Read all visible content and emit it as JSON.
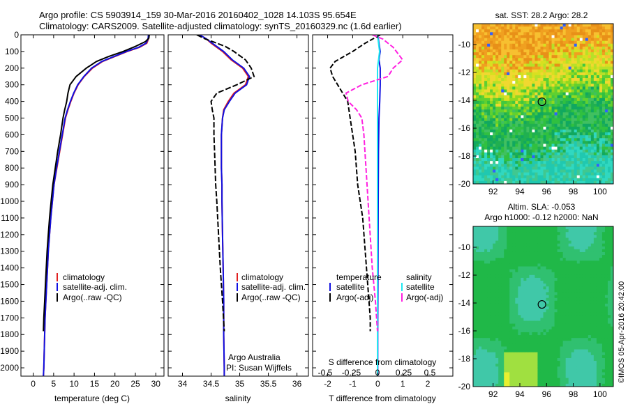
{
  "header": {
    "line1": "Argo profile: CS 5903914_159 30-Mar-2016 20160402_1028 14.103S 95.654E",
    "line2": "Climatology: CARS2009. Satellite-adjusted climatology: synTS_20160329.nc (1.6d earlier)"
  },
  "colors": {
    "climatology": "#e02020",
    "satellite": "#1010e0",
    "argo": "#000000",
    "salinity_diff": "#ff20e0",
    "sat_salinity_diff": "#20e8f0"
  },
  "panels": {
    "temperature": {
      "xlabel": "temperature (deg C)",
      "legend": [
        "climatology",
        "satellite-adj. clim.",
        "Argo(..raw -QC)"
      ]
    },
    "salinity": {
      "xlabel": "salinity",
      "legend": [
        "climatology",
        "satellite-adj. clim.",
        "Argo(..raw -QC)"
      ],
      "note1": "Argo Australia",
      "note2": "PI: Susan Wijffels"
    },
    "difference": {
      "xlabel_bottom": "T difference from climatology",
      "xlabel_top": "S difference from climatology",
      "legend_temperature_title": "temperature",
      "legend_salinity_title": "salinity",
      "legend_t": [
        "satellite",
        "Argo(-adj)"
      ],
      "legend_s": [
        "satellite",
        "Argo(-adj)"
      ]
    },
    "sst_map": {
      "title": "sat. SST: 28.2  Argo: 28.2"
    },
    "sla_map": {
      "title1": "Altim. SLA: -0.053",
      "title2": "Argo h1000: -0.12  h2000: NaN"
    },
    "credit": "©IMOS 05-Apr-2016 20:42:00"
  },
  "chart_data": [
    {
      "type": "line",
      "title": "",
      "xlabel": "temperature (deg C)",
      "ylabel": "",
      "xlim": [
        -3,
        32
      ],
      "ylim": [
        2050,
        0
      ],
      "xticks": [
        0,
        5,
        10,
        15,
        20,
        25,
        30
      ],
      "yticks": [
        0,
        100,
        200,
        300,
        400,
        500,
        600,
        700,
        800,
        900,
        1000,
        1100,
        1200,
        1300,
        1400,
        1500,
        1600,
        1700,
        1800,
        1900,
        2000
      ],
      "series": [
        {
          "name": "climatology",
          "values": [
            [
              28.3,
              0
            ],
            [
              28.2,
              25
            ],
            [
              27.8,
              50
            ],
            [
              26,
              75
            ],
            [
              23,
              100
            ],
            [
              20,
              130
            ],
            [
              17,
              160
            ],
            [
              14.5,
              200
            ],
            [
              12.5,
              250
            ],
            [
              11,
              300
            ],
            [
              10,
              350
            ],
            [
              9.2,
              400
            ],
            [
              8.5,
              450
            ],
            [
              7.9,
              500
            ],
            [
              7.2,
              600
            ],
            [
              6.5,
              700
            ],
            [
              5.8,
              800
            ],
            [
              5.1,
              900
            ],
            [
              4.7,
              1000
            ],
            [
              4.3,
              1100
            ],
            [
              4.0,
              1200
            ],
            [
              3.7,
              1300
            ],
            [
              3.5,
              1400
            ],
            [
              3.3,
              1500
            ],
            [
              3.1,
              1600
            ],
            [
              2.9,
              1700
            ],
            [
              2.8,
              1800
            ],
            [
              2.7,
              1900
            ],
            [
              2.6,
              2000
            ],
            [
              2.5,
              2050
            ]
          ]
        },
        {
          "name": "satellite-adj. clim.",
          "values": [
            [
              28.2,
              0
            ],
            [
              28.1,
              25
            ],
            [
              27.6,
              50
            ],
            [
              25.8,
              75
            ],
            [
              22.8,
              100
            ],
            [
              19.8,
              130
            ],
            [
              16.8,
              160
            ],
            [
              14.3,
              200
            ],
            [
              12.4,
              250
            ],
            [
              10.9,
              300
            ],
            [
              9.9,
              350
            ],
            [
              9.1,
              400
            ],
            [
              8.4,
              450
            ],
            [
              7.8,
              500
            ],
            [
              7.1,
              600
            ],
            [
              6.4,
              700
            ],
            [
              5.7,
              800
            ],
            [
              5.1,
              900
            ],
            [
              4.7,
              1000
            ],
            [
              4.3,
              1100
            ],
            [
              4.0,
              1200
            ],
            [
              3.7,
              1300
            ],
            [
              3.5,
              1400
            ],
            [
              3.3,
              1500
            ],
            [
              3.1,
              1600
            ],
            [
              2.9,
              1700
            ],
            [
              2.8,
              1800
            ],
            [
              2.7,
              1900
            ],
            [
              2.6,
              2000
            ],
            [
              2.5,
              2050
            ]
          ]
        },
        {
          "name": "Argo(..raw -QC)",
          "values": [
            [
              28.4,
              0
            ],
            [
              28.3,
              20
            ],
            [
              27.5,
              40
            ],
            [
              25,
              70
            ],
            [
              22,
              100
            ],
            [
              18.5,
              130
            ],
            [
              15.5,
              160
            ],
            [
              13,
              200
            ],
            [
              10.5,
              250
            ],
            [
              9,
              300
            ],
            [
              8.5,
              350
            ],
            [
              8.2,
              400
            ],
            [
              7.7,
              450
            ],
            [
              7.3,
              500
            ],
            [
              6.7,
              600
            ],
            [
              6,
              700
            ],
            [
              5.4,
              800
            ],
            [
              4.8,
              900
            ],
            [
              4.4,
              1000
            ],
            [
              4.0,
              1100
            ],
            [
              3.7,
              1200
            ],
            [
              3.4,
              1300
            ],
            [
              3.2,
              1400
            ],
            [
              3.0,
              1500
            ],
            [
              2.8,
              1600
            ],
            [
              2.6,
              1700
            ],
            [
              2.5,
              1780
            ]
          ]
        }
      ]
    },
    {
      "type": "line",
      "title": "",
      "xlabel": "salinity",
      "ylabel": "",
      "xlim": [
        33.75,
        36.2
      ],
      "ylim": [
        2050,
        0
      ],
      "xticks": [
        34,
        34.5,
        35,
        35.5,
        36
      ],
      "series": [
        {
          "name": "climatology",
          "values": [
            [
              34.3,
              0
            ],
            [
              34.42,
              25
            ],
            [
              34.5,
              50
            ],
            [
              34.6,
              75
            ],
            [
              34.7,
              100
            ],
            [
              34.85,
              150
            ],
            [
              35.05,
              200
            ],
            [
              35.15,
              250
            ],
            [
              35.1,
              300
            ],
            [
              34.9,
              350
            ],
            [
              34.8,
              400
            ],
            [
              34.72,
              450
            ],
            [
              34.7,
              500
            ],
            [
              34.68,
              600
            ],
            [
              34.68,
              700
            ],
            [
              34.68,
              800
            ],
            [
              34.69,
              900
            ],
            [
              34.69,
              1000
            ],
            [
              34.7,
              1200
            ],
            [
              34.71,
              1400
            ],
            [
              34.72,
              1600
            ],
            [
              34.72,
              1800
            ],
            [
              34.73,
              2000
            ],
            [
              34.73,
              2050
            ]
          ]
        },
        {
          "name": "satellite-adj. clim.",
          "values": [
            [
              34.3,
              0
            ],
            [
              34.42,
              25
            ],
            [
              34.52,
              50
            ],
            [
              34.62,
              75
            ],
            [
              34.72,
              100
            ],
            [
              34.87,
              150
            ],
            [
              35.07,
              200
            ],
            [
              35.17,
              250
            ],
            [
              35.12,
              300
            ],
            [
              34.92,
              350
            ],
            [
              34.82,
              400
            ],
            [
              34.73,
              450
            ],
            [
              34.7,
              500
            ],
            [
              34.68,
              600
            ],
            [
              34.68,
              700
            ],
            [
              34.68,
              800
            ],
            [
              34.69,
              900
            ],
            [
              34.69,
              1000
            ],
            [
              34.7,
              1200
            ],
            [
              34.71,
              1400
            ],
            [
              34.72,
              1600
            ],
            [
              34.72,
              1800
            ],
            [
              34.73,
              2000
            ],
            [
              34.73,
              2050
            ]
          ]
        },
        {
          "name": "Argo(..raw -QC)",
          "values": [
            [
              34.25,
              0
            ],
            [
              34.4,
              25
            ],
            [
              34.6,
              50
            ],
            [
              34.75,
              70
            ],
            [
              34.9,
              100
            ],
            [
              35.1,
              150
            ],
            [
              35.2,
              200
            ],
            [
              35.25,
              250
            ],
            [
              34.95,
              300
            ],
            [
              34.6,
              350
            ],
            [
              34.5,
              400
            ],
            [
              34.52,
              450
            ],
            [
              34.55,
              500
            ],
            [
              34.55,
              600
            ],
            [
              34.56,
              700
            ],
            [
              34.57,
              800
            ],
            [
              34.58,
              900
            ],
            [
              34.6,
              1000
            ],
            [
              34.63,
              1200
            ],
            [
              34.66,
              1400
            ],
            [
              34.7,
              1600
            ],
            [
              34.73,
              1780
            ]
          ]
        }
      ]
    },
    {
      "type": "line",
      "title": "",
      "xlabel": "T difference from climatology",
      "xlabel_top": "S difference from climatology",
      "xlim": [
        -2.6,
        3.0
      ],
      "ylim": [
        2050,
        0
      ],
      "xticks": [
        -2,
        -1,
        0,
        1,
        2
      ],
      "xticks_top": [
        -0.5,
        -0.25,
        0,
        0.25,
        0.5
      ],
      "series": [
        {
          "name": "temperature satellite",
          "axis": "T",
          "values": [
            [
              0,
              0
            ],
            [
              0.05,
              50
            ],
            [
              0.1,
              100
            ],
            [
              0.05,
              150
            ],
            [
              0.1,
              200
            ],
            [
              0.1,
              300
            ],
            [
              0.08,
              400
            ],
            [
              0.05,
              500
            ],
            [
              0.03,
              700
            ],
            [
              0.02,
              1000
            ],
            [
              0.01,
              1400
            ],
            [
              0.0,
              1800
            ],
            [
              0.0,
              2050
            ]
          ]
        },
        {
          "name": "temperature Argo(-adj)",
          "axis": "T",
          "values": [
            [
              0.1,
              0
            ],
            [
              -0.5,
              50
            ],
            [
              -1.0,
              100
            ],
            [
              -1.7,
              160
            ],
            [
              -1.9,
              200
            ],
            [
              -1.8,
              250
            ],
            [
              -1.6,
              300
            ],
            [
              -1.4,
              350
            ],
            [
              -1.2,
              400
            ],
            [
              -1.1,
              500
            ],
            [
              -1.0,
              600
            ],
            [
              -0.9,
              700
            ],
            [
              -0.85,
              800
            ],
            [
              -0.8,
              900
            ],
            [
              -0.7,
              1000
            ],
            [
              -0.6,
              1100
            ],
            [
              -0.55,
              1200
            ],
            [
              -0.5,
              1300
            ],
            [
              -0.45,
              1400
            ],
            [
              -0.4,
              1500
            ],
            [
              -0.35,
              1600
            ],
            [
              -0.3,
              1700
            ],
            [
              -0.3,
              1780
            ]
          ]
        },
        {
          "name": "salinity satellite",
          "axis": "S",
          "values": [
            [
              0,
              0
            ],
            [
              0.01,
              50
            ],
            [
              0.02,
              100
            ],
            [
              0.0,
              200
            ],
            [
              0.0,
              400
            ],
            [
              0.0,
              800
            ],
            [
              0.0,
              1200
            ],
            [
              0.0,
              1600
            ],
            [
              0.0,
              2050
            ]
          ]
        },
        {
          "name": "salinity Argo(-adj)",
          "axis": "S",
          "values": [
            [
              -0.05,
              0
            ],
            [
              0.05,
              25
            ],
            [
              0.1,
              50
            ],
            [
              0.15,
              75
            ],
            [
              0.18,
              100
            ],
            [
              0.24,
              150
            ],
            [
              0.15,
              200
            ],
            [
              0.1,
              250
            ],
            [
              -0.15,
              300
            ],
            [
              -0.3,
              350
            ],
            [
              -0.28,
              400
            ],
            [
              -0.2,
              450
            ],
            [
              -0.15,
              500
            ],
            [
              -0.13,
              600
            ],
            [
              -0.12,
              700
            ],
            [
              -0.11,
              800
            ],
            [
              -0.1,
              900
            ],
            [
              -0.09,
              1000
            ],
            [
              -0.07,
              1200
            ],
            [
              -0.05,
              1400
            ],
            [
              -0.02,
              1600
            ],
            [
              0.0,
              1780
            ]
          ]
        }
      ]
    },
    {
      "type": "heatmap",
      "title": "sat. SST: 28.2  Argo: 28.2",
      "xlim": [
        90.5,
        101
      ],
      "ylim": [
        -20,
        -8.5
      ],
      "xticks": [
        92,
        94,
        96,
        98,
        100
      ],
      "yticks": [
        -10,
        -12,
        -14,
        -16,
        -18,
        -20
      ],
      "marker": [
        95.654,
        -14.103
      ]
    },
    {
      "type": "heatmap",
      "title": "Altim. SLA: -0.053",
      "xlim": [
        90.5,
        101
      ],
      "ylim": [
        -20,
        -8.5
      ],
      "xticks": [
        92,
        94,
        96,
        98,
        100
      ],
      "yticks": [
        -10,
        -12,
        -14,
        -16,
        -18,
        -20
      ],
      "marker": [
        95.654,
        -14.103
      ]
    }
  ]
}
